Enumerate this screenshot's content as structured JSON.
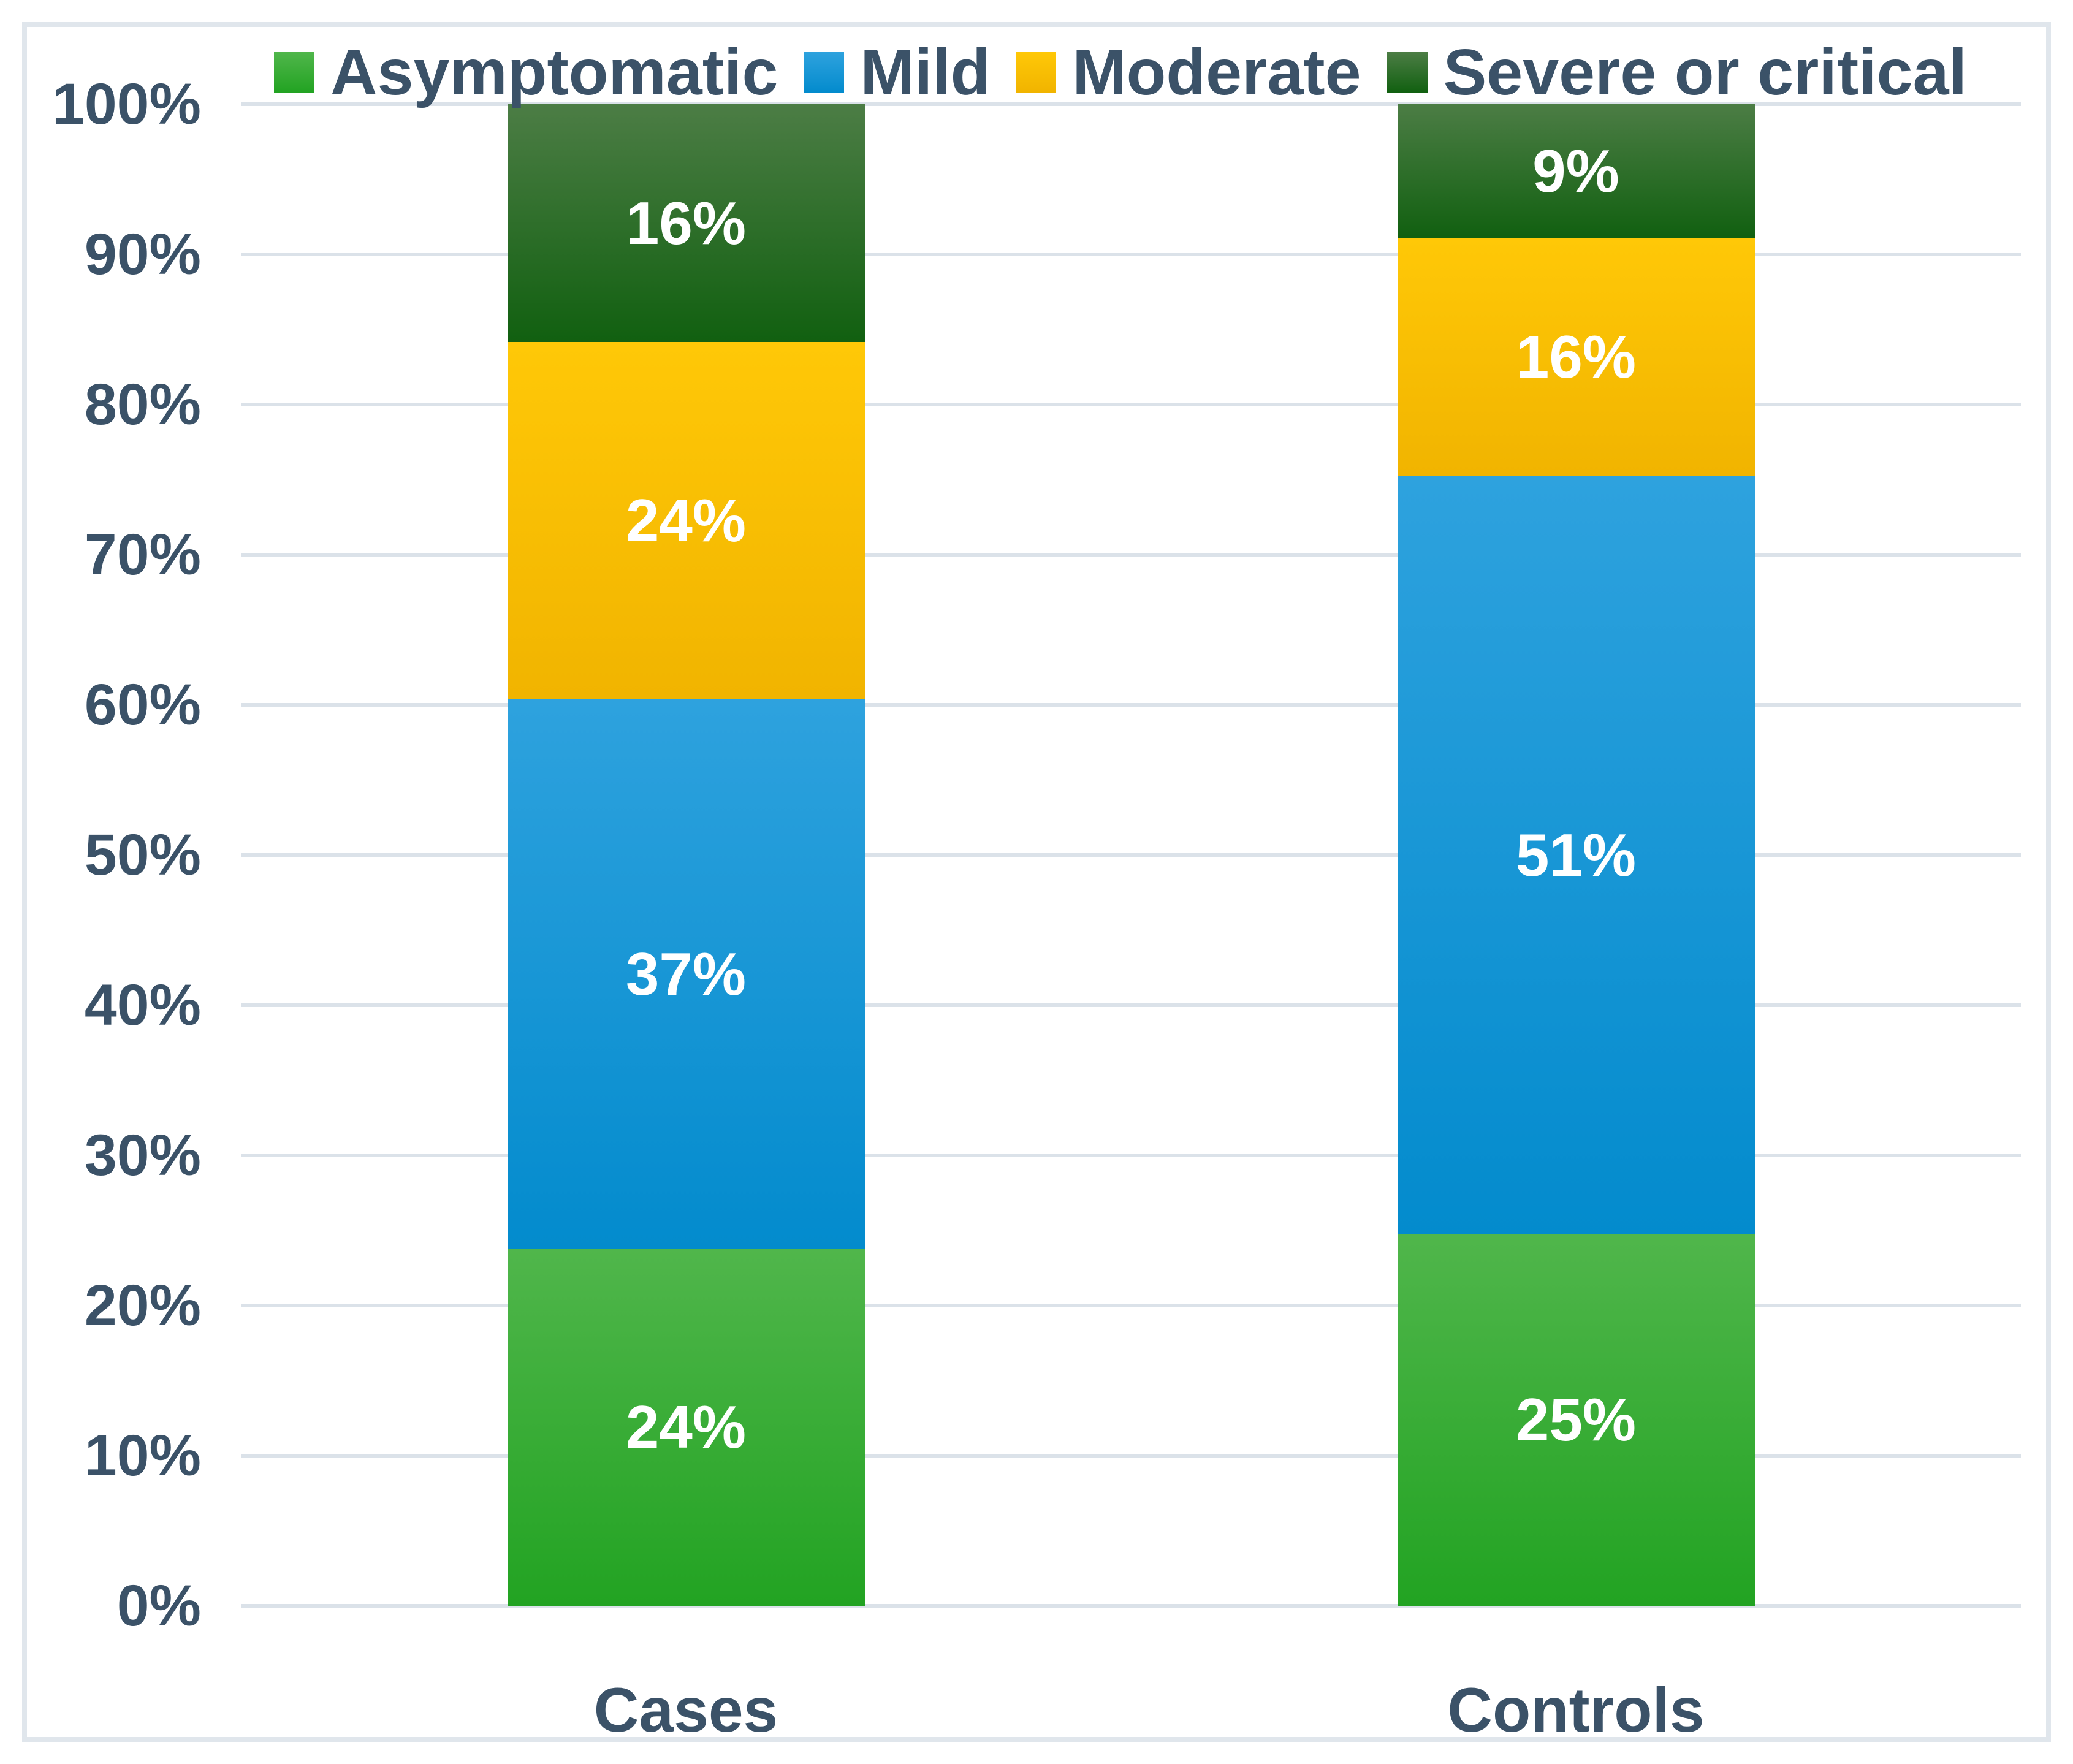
{
  "chart_data": {
    "type": "bar",
    "subtype": "stacked-100-percent-column",
    "title": "",
    "xlabel": "",
    "ylabel": "",
    "categories": [
      "Cases",
      "Controls"
    ],
    "series": [
      {
        "name": "Asymptomatic",
        "values": [
          24,
          25
        ],
        "labels": [
          "24%",
          "25%"
        ],
        "color_top": "#50B64B",
        "color_bottom": "#22A322"
      },
      {
        "name": "Mild",
        "values": [
          37,
          51
        ],
        "labels": [
          "37%",
          "51%"
        ],
        "color_top": "#2EA2DE",
        "color_bottom": "#038BCD"
      },
      {
        "name": "Moderate",
        "values": [
          24,
          16
        ],
        "labels": [
          "24%",
          "16%"
        ],
        "color_top": "#FFC807",
        "color_bottom": "#F1B400"
      },
      {
        "name": "Severe or critical",
        "values": [
          16,
          9
        ],
        "labels": [
          "16%",
          "9%"
        ],
        "color_top": "#4C7D45",
        "color_bottom": "#116010"
      }
    ],
    "y_axis": {
      "min": 0,
      "max": 100,
      "ticks": [
        {
          "label": "0%",
          "value": 0
        },
        {
          "label": "10%",
          "value": 10
        },
        {
          "label": "20%",
          "value": 20
        },
        {
          "label": "30%",
          "value": 30
        },
        {
          "label": "40%",
          "value": 40
        },
        {
          "label": "50%",
          "value": 50
        },
        {
          "label": "60%",
          "value": 60
        },
        {
          "label": "70%",
          "value": 70
        },
        {
          "label": "80%",
          "value": 80
        },
        {
          "label": "90%",
          "value": 90
        },
        {
          "label": "100%",
          "value": 100
        }
      ]
    },
    "legend_position": "top",
    "grid": true,
    "colors_ui": {
      "axis_text": "#3B5268",
      "gridline": "#DBE2E9",
      "frame_border": "#E0E6EC",
      "segment_label_text": "#FFFFFF",
      "background": "#FFFFFF"
    }
  }
}
